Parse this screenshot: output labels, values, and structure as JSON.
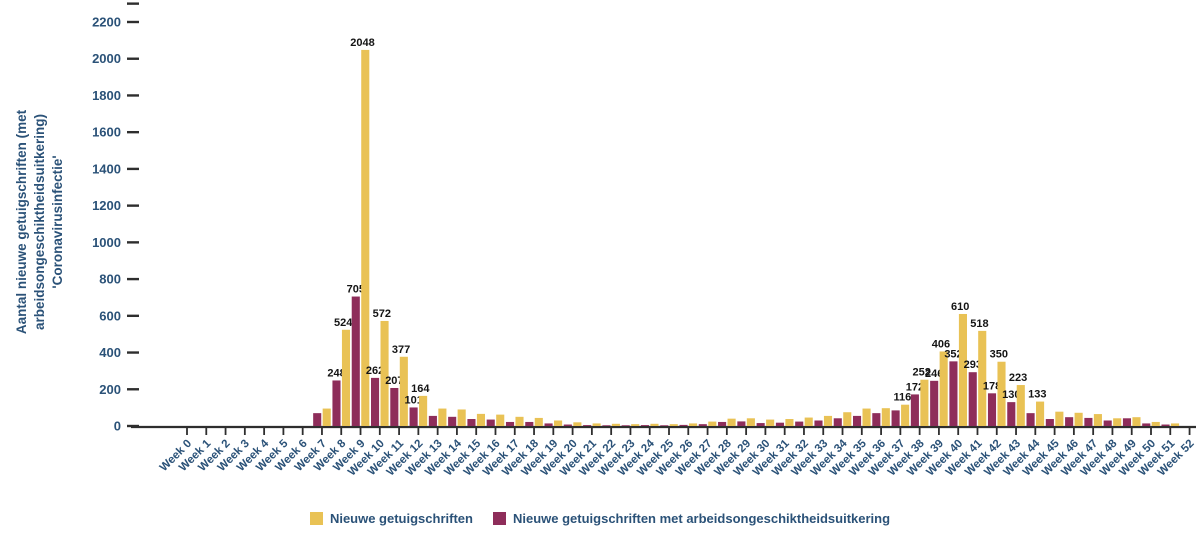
{
  "colors": {
    "series_yellow": "#e9c255",
    "series_maroon": "#8e2d5a",
    "axis_text": "#2b5278",
    "value_label": "#141414",
    "axis_line": "#2e2e2e",
    "background": "#ffffff"
  },
  "yaxis_title_lines": {
    "line1": "Aantal nieuwe getuigschriften (met",
    "line2": "arbeidsongeschiktheidsuitkering)",
    "line3": "'Coronavirusinfectie'"
  },
  "chart_data": {
    "type": "bar",
    "title": "",
    "xlabel": "",
    "ylabel": "Aantal nieuwe getuigschriften (met arbeidsongeschiktheidsuitkering) 'Coronavirusinfectie'",
    "ylim": [
      0,
      2200
    ],
    "ytick_step": 200,
    "grid": false,
    "legend_position": "bottom",
    "value_label_threshold": 100,
    "categories": [
      "Week 0",
      "Week 1",
      "Week 2",
      "Week 3",
      "Week 4",
      "Week 5",
      "Week 6",
      "Week 7",
      "Week 8",
      "Week 9",
      "Week 10",
      "Week 11",
      "Week 12",
      "Week 13",
      "Week 14",
      "Week 15",
      "Week 16",
      "Week 17",
      "Week 18",
      "Week 19",
      "Week 20",
      "Week 21",
      "Week 22",
      "Week 23",
      "Week 24",
      "Week 25",
      "Week 26",
      "Week 27",
      "Week 28",
      "Week 29",
      "Week 30",
      "Week 31",
      "Week 32",
      "Week 33",
      "Week 34",
      "Week 35",
      "Week 36",
      "Week 37",
      "Week 38",
      "Week 39",
      "Week 40",
      "Week 41",
      "Week 42",
      "Week 43",
      "Week 44",
      "Week 45",
      "Week 46",
      "Week 47",
      "Week 48",
      "Week 49",
      "Week 50",
      "Week 51",
      "Week 52"
    ],
    "series": [
      {
        "name": "Nieuwe getuigschriften",
        "color": "#e9c255",
        "values": [
          0,
          0,
          0,
          0,
          0,
          0,
          0,
          95,
          524,
          2048,
          572,
          377,
          164,
          95,
          90,
          66,
          62,
          50,
          44,
          30,
          20,
          14,
          12,
          10,
          12,
          10,
          14,
          24,
          40,
          42,
          35,
          38,
          46,
          55,
          75,
          95,
          97,
          116,
          252,
          406,
          610,
          518,
          350,
          223,
          133,
          78,
          72,
          65,
          42,
          48,
          22,
          14,
          0
        ]
      },
      {
        "name": "Nieuwe getuigschriften met arbeidsongeschiktheidsuitkering",
        "color": "#8e2d5a",
        "values": [
          0,
          0,
          0,
          0,
          0,
          0,
          0,
          70,
          248,
          705,
          262,
          207,
          101,
          55,
          50,
          38,
          35,
          22,
          22,
          14,
          8,
          5,
          4,
          4,
          5,
          4,
          6,
          10,
          22,
          25,
          16,
          18,
          24,
          30,
          42,
          55,
          70,
          85,
          172,
          246,
          352,
          293,
          178,
          130,
          70,
          38,
          48,
          44,
          30,
          42,
          14,
          8,
          0
        ]
      }
    ],
    "labeled_values_yellow": [
      524,
      2048,
      572,
      377,
      164,
      116,
      252,
      406,
      610,
      518,
      350,
      223,
      133
    ],
    "labeled_values_maroon": [
      248,
      705,
      262,
      207,
      101,
      172,
      246,
      352,
      293,
      178,
      130
    ]
  }
}
